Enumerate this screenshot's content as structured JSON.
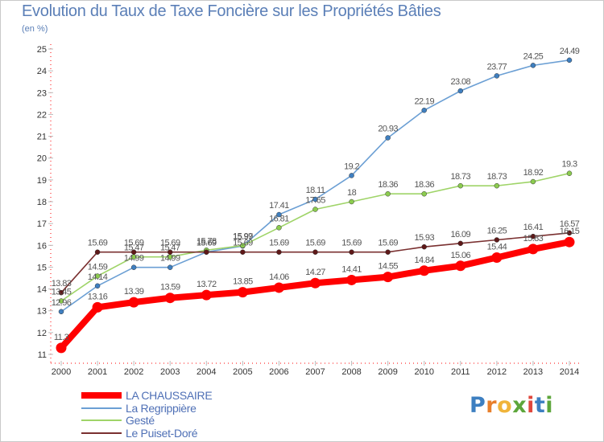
{
  "header": {
    "title": "Evolution du Taux de Taxe Foncière sur les Propriétés Bâties",
    "unit": "(en %)"
  },
  "logo": {
    "text": "Proxiti",
    "colors": [
      "#3d7fc1",
      "#e87f2b",
      "#f0b43a",
      "#5da63b",
      "#e0473c",
      "#3d7fc1",
      "#5da63b"
    ]
  },
  "chart_data": {
    "type": "line",
    "x": [
      2000,
      2001,
      2002,
      2003,
      2004,
      2005,
      2006,
      2007,
      2008,
      2009,
      2010,
      2011,
      2012,
      2013,
      2014
    ],
    "ylim": [
      11,
      25
    ],
    "yticks": [
      11,
      12,
      13,
      14,
      15,
      16,
      17,
      18,
      19,
      20,
      21,
      22,
      23,
      24,
      25
    ],
    "grid": false,
    "legend_position": "bottom-left",
    "series": [
      {
        "name": "La Regrippière",
        "color": "#6b9fd4",
        "marker": "#3f7fc0",
        "values": [
          12.96,
          14.14,
          14.99,
          14.99,
          15.69,
          15.97,
          17.41,
          18.11,
          19.2,
          20.93,
          22.19,
          23.08,
          23.77,
          24.25,
          24.49
        ],
        "labels": [
          "12.96",
          "14.14",
          "14.99",
          "14.99",
          "15.69",
          "15.97",
          "17.41",
          "18.11",
          "19.2",
          "20.93",
          "22.19",
          "23.08",
          "23.77",
          "24.25",
          "24.49"
        ]
      },
      {
        "name": "Gesté",
        "color": "#9fd468",
        "marker": "#8ccc4f",
        "values": [
          13.45,
          14.59,
          15.47,
          15.47,
          15.78,
          15.99,
          16.81,
          17.65,
          18,
          18.36,
          18.36,
          18.73,
          18.73,
          18.92,
          19.3
        ],
        "labels": [
          "13.45",
          "14.59",
          "15.47",
          "15.47",
          "15.78",
          "15.99",
          "16.81",
          "17.65",
          "18",
          "18.36",
          "18.36",
          "18.73",
          "18.73",
          "18.92",
          "19.3"
        ]
      },
      {
        "name": "Le Puiset-Doré",
        "color": "#7a3030",
        "marker": "#5e1818",
        "values": [
          13.83,
          15.69,
          15.69,
          15.69,
          15.69,
          15.69,
          15.69,
          15.69,
          15.69,
          15.69,
          15.93,
          16.09,
          16.25,
          16.41,
          16.57
        ],
        "labels": [
          "13.83",
          "15.69",
          "15.69",
          "15.69",
          "15.69",
          "15.69",
          "15.69",
          "15.69",
          "15.69",
          "15.69",
          "15.93",
          "16.09",
          "16.25",
          "16.41",
          "16.57"
        ]
      },
      {
        "name": "LA CHAUSSAIRE",
        "color": "#ff0000",
        "marker": "#ff0000",
        "values": [
          11.3,
          13.16,
          13.39,
          13.59,
          13.72,
          13.85,
          14.06,
          14.27,
          14.41,
          14.55,
          14.84,
          15.06,
          15.44,
          15.83,
          16.15
        ],
        "labels": [
          "11.3",
          "13.16",
          "13.39",
          "13.59",
          "13.72",
          "13.85",
          "14.06",
          "14.27",
          "14.41",
          "14.55",
          "14.84",
          "15.06",
          "15.44",
          "15.83",
          "16.15"
        ]
      }
    ],
    "legend_order": [
      "LA CHAUSSAIRE",
      "La Regrippière",
      "Gesté",
      "Le Puiset-Doré"
    ]
  }
}
